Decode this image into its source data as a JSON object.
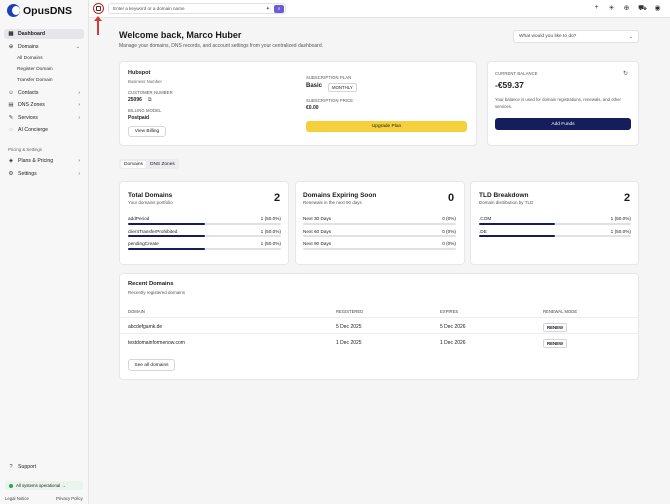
{
  "brand": {
    "name": "OpusDNS"
  },
  "sidebar": {
    "items": [
      {
        "label": "Dashboard",
        "icon": "grid-icon"
      },
      {
        "label": "Domains",
        "icon": "globe-icon"
      },
      {
        "label": "Contacts",
        "icon": "user-icon"
      },
      {
        "label": "DNS Zones",
        "icon": "server-icon"
      },
      {
        "label": "Services",
        "icon": "wrench-icon"
      },
      {
        "label": "AI Concierge",
        "icon": "chat-icon"
      }
    ],
    "domain_subitems": [
      "All Domains",
      "Register Domain",
      "Transfer Domain"
    ],
    "section_label": "Pricing & Settings",
    "bottom_items": [
      {
        "label": "Plans & Pricing",
        "icon": "tag-icon"
      },
      {
        "label": "Settings",
        "icon": "gear-icon"
      }
    ],
    "support": "Support",
    "status": "All systems operational →",
    "legal": "Legal Notice",
    "privacy": "Privacy Policy"
  },
  "topbar": {
    "search_placeholder": "Enter a keyword or a domain name"
  },
  "header": {
    "title": "Welcome back, Marco Huber",
    "subtitle": "Manage your domains, DNS records, and account settings from your centralized dashboard.",
    "ask_placeholder": "What would you like to do?"
  },
  "account": {
    "name": "Hubspot",
    "business_number_label": "Business Number",
    "customer_number_label": "CUSTOMER NUMBER",
    "customer_number": "25096",
    "billing_model_label": "BILLING MODEL",
    "billing_model": "Postpaid",
    "view_billing": "View Billing",
    "plan_label": "SUBSCRIPTION PLAN",
    "plan": "Basic",
    "plan_period": "MONTHLY",
    "price_label": "SUBSCRIPTION PRICE",
    "price": "€0.00",
    "upgrade": "Upgrade Plan"
  },
  "balance": {
    "label": "CURRENT BALANCE",
    "value": "-€59.37",
    "note": "Your balance is used for domain registrations, renewals, and other services.",
    "add_funds": "Add Funds"
  },
  "tabs": [
    "Domains",
    "DNS Zones"
  ],
  "stats": {
    "total": {
      "title": "Total Domains",
      "subtitle": "Your domains portfolio",
      "count": "2",
      "rows": [
        {
          "label": "addPeriod",
          "value": "1 (50.0%)",
          "fraction": 0.5
        },
        {
          "label": "clientTransferProhibited",
          "value": "1 (50.0%)",
          "fraction": 0.5
        },
        {
          "label": "pendingCreate",
          "value": "1 (50.0%)",
          "fraction": 0.5
        }
      ]
    },
    "expiring": {
      "title": "Domains Expiring Soon",
      "subtitle": "Renewals in the next 90 days",
      "count": "0",
      "rows": [
        {
          "label": "Next 30 Days",
          "value": "0 (0%)",
          "fraction": 0
        },
        {
          "label": "Next 60 Days",
          "value": "0 (0%)",
          "fraction": 0
        },
        {
          "label": "Next 90 Days",
          "value": "0 (0%)",
          "fraction": 0
        }
      ]
    },
    "tld": {
      "title": "TLD Breakdown",
      "subtitle": "Domain distribution by TLD",
      "count": "2",
      "rows": [
        {
          "label": ".COM",
          "value": "1 (50.0%)",
          "fraction": 0.5
        },
        {
          "label": ".DE",
          "value": "1 (50.0%)",
          "fraction": 0.5
        }
      ]
    }
  },
  "recent": {
    "title": "Recent Domains",
    "subtitle": "Recently registered domains",
    "columns": [
      "DOMAIN",
      "REGISTERED",
      "EXPIRES",
      "RENEWAL MODE"
    ],
    "rows": [
      {
        "domain": "abcdefgamk.de",
        "registered": "5 Dec 2025",
        "expires": "5 Dec 2026",
        "mode": "RENEW"
      },
      {
        "domain": "testdomainformenow.com",
        "registered": "1 Dec 2025",
        "expires": "1 Dec 2026",
        "mode": "RENEW"
      }
    ],
    "see_all": "See all domains"
  }
}
